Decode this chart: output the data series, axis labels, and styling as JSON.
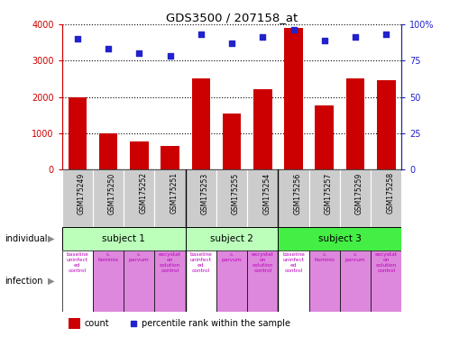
{
  "title": "GDS3500 / 207158_at",
  "samples": [
    "GSM175249",
    "GSM175250",
    "GSM175252",
    "GSM175251",
    "GSM175253",
    "GSM175255",
    "GSM175254",
    "GSM175256",
    "GSM175257",
    "GSM175259",
    "GSM175258"
  ],
  "counts": [
    1980,
    1000,
    780,
    650,
    2500,
    1550,
    2200,
    3900,
    1760,
    2500,
    2450
  ],
  "percentile_ranks": [
    90,
    83,
    80,
    78,
    93,
    87,
    91,
    96,
    89,
    91,
    93
  ],
  "bar_color": "#cc0000",
  "dot_color": "#2222cc",
  "ylim_left": [
    0,
    4000
  ],
  "ylim_right": [
    0,
    100
  ],
  "yticks_left": [
    0,
    1000,
    2000,
    3000,
    4000
  ],
  "yticks_right": [
    0,
    25,
    50,
    75,
    100
  ],
  "subjects": [
    {
      "label": "subject 1",
      "start": 0,
      "end": 4,
      "color": "#bbffbb"
    },
    {
      "label": "subject 2",
      "start": 4,
      "end": 7,
      "color": "#bbffbb"
    },
    {
      "label": "subject 3",
      "start": 7,
      "end": 11,
      "color": "#44ee44"
    }
  ],
  "infections": [
    {
      "label": "baseline\nuninfect\ned\ncontrol",
      "color": "#ffffff",
      "idx": 0
    },
    {
      "label": "c.\nhominis",
      "color": "#dd88dd",
      "idx": 1
    },
    {
      "label": "c.\nparvum",
      "color": "#dd88dd",
      "idx": 2
    },
    {
      "label": "excystat\non\nsolution\ncontrol",
      "color": "#dd88dd",
      "idx": 3
    },
    {
      "label": "baseline\nuninfect\ned\ncontrol",
      "color": "#ffffff",
      "idx": 4
    },
    {
      "label": "c.\nparvum",
      "color": "#dd88dd",
      "idx": 5
    },
    {
      "label": "excystat\non\nsolution\ncontrol",
      "color": "#dd88dd",
      "idx": 6
    },
    {
      "label": "baseline\nuninfect\ned\ncontrol",
      "color": "#ffffff",
      "idx": 7
    },
    {
      "label": "c.\nhominis",
      "color": "#dd88dd",
      "idx": 8
    },
    {
      "label": "c.\nparvum",
      "color": "#dd88dd",
      "idx": 9
    },
    {
      "label": "excystat\non\nsolution\ncontrol",
      "color": "#dd88dd",
      "idx": 10
    }
  ],
  "gsm_bg_color": "#cccccc",
  "left_axis_color": "#cc0000",
  "right_axis_color": "#2222cc",
  "individual_label": "individual",
  "infection_label": "infection",
  "boundary_cols": [
    3.5,
    6.5
  ],
  "n_samples": 11
}
